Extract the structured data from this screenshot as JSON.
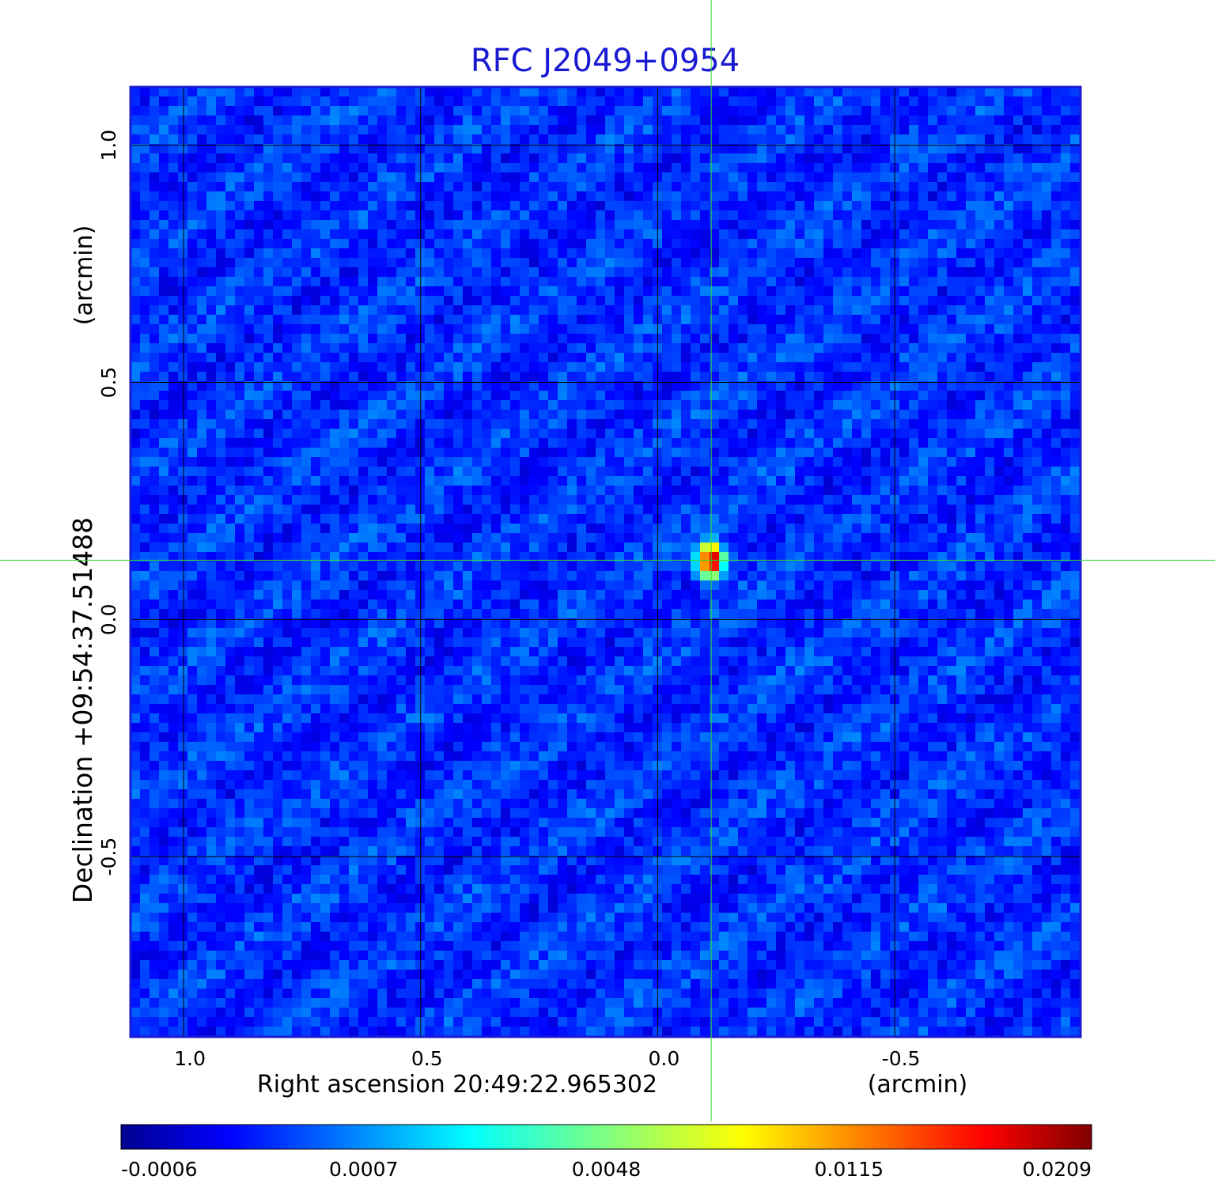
{
  "chart_data": {
    "type": "heatmap",
    "title": "RFC J2049+0954",
    "xlabel": "Right ascension  20:49:22.965302",
    "xunit": "(arcmin)",
    "ylabel": "Declination  +09:54:37.51488",
    "yunit": "(arcmin)",
    "x_ticks": [
      1.0,
      0.5,
      0.0,
      -0.5
    ],
    "x_tick_labels": [
      "1.0",
      "0.5",
      "0.0",
      "-0.5"
    ],
    "xlim": [
      1.112,
      -0.892
    ],
    "y_ticks": [
      1.0,
      0.5,
      0.0,
      -0.5
    ],
    "y_tick_labels": [
      "1.0",
      "0.5",
      "0.0",
      "-0.5"
    ],
    "ylim": [
      -0.88,
      1.123
    ],
    "grid": true,
    "crosshair": {
      "x": -0.113,
      "y": 0.125
    },
    "source_peak": {
      "x": -0.113,
      "y": 0.125,
      "value": 0.0209
    },
    "colorbar": {
      "colormap": "jet",
      "tick_labels": [
        "-0.0006",
        "0.0007",
        "0.0048",
        "0.0115",
        "0.0209"
      ],
      "vmin": -0.0006,
      "vmax": 0.0209
    },
    "colors": {
      "title": "#1a1ad2",
      "grid": "#000000",
      "crosshair": "#33dd33",
      "frame": "#1a1ad2"
    }
  }
}
